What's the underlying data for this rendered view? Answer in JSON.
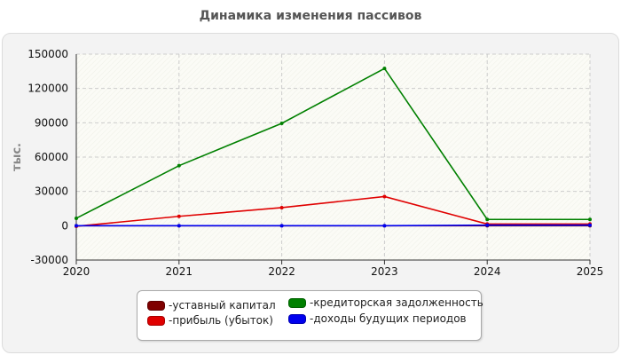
{
  "chart_data": {
    "type": "line",
    "title": "Динамика изменения пассивов",
    "ylabel": "тыс.",
    "xlabel": "",
    "x": [
      "2020",
      "2021",
      "2022",
      "2023",
      "2024",
      "2025"
    ],
    "ylim": [
      -30000,
      150000
    ],
    "yticks": [
      "150000",
      "120000",
      "90000",
      "60000",
      "30000",
      "0",
      "-30000"
    ],
    "grid": true,
    "legend_position": "bottom",
    "series": [
      {
        "name": "уставный капитал",
        "color": "#7f0000",
        "values": [
          0,
          0,
          0,
          0,
          0,
          0
        ]
      },
      {
        "name": "прибыль (убыток)",
        "color": "#e00000",
        "values": [
          -500,
          8200,
          15800,
          25500,
          1500,
          1500
        ]
      },
      {
        "name": "кредиторская задолженность",
        "color": "#008000",
        "values": [
          6500,
          52500,
          89500,
          137500,
          5500,
          5500
        ]
      },
      {
        "name": "доходы будущих периодов",
        "color": "#0000ee",
        "values": [
          0,
          0,
          0,
          0,
          500,
          500
        ]
      }
    ]
  }
}
